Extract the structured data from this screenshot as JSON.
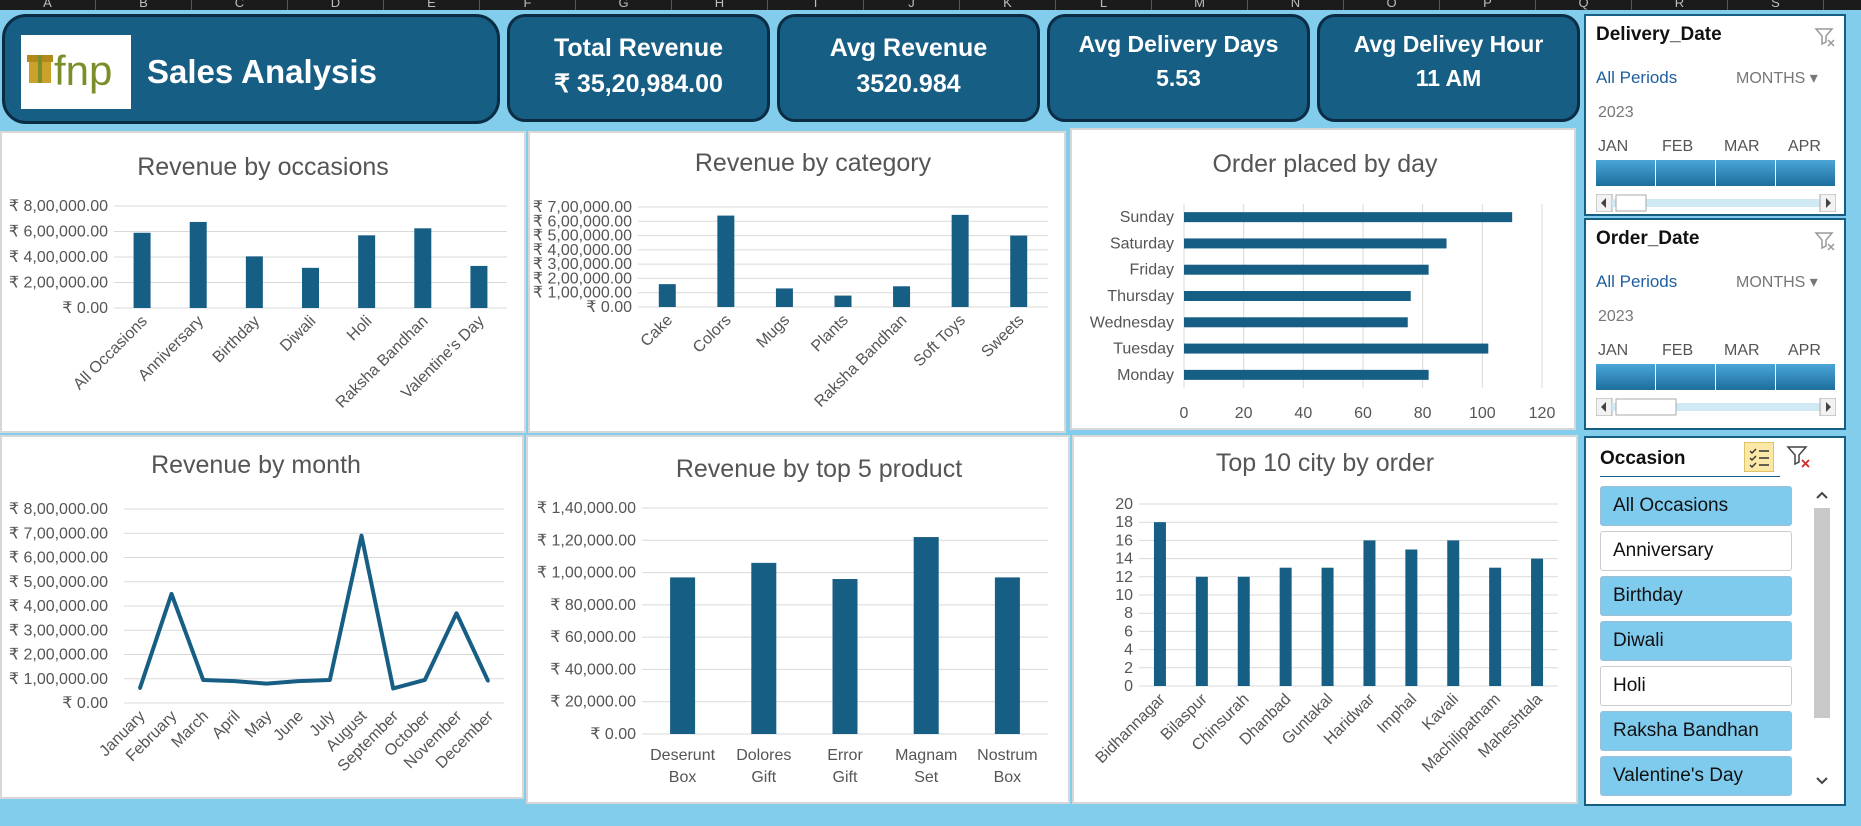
{
  "column_headers": [
    "A",
    "B",
    "C",
    "D",
    "E",
    "F",
    "G",
    "H",
    "I",
    "J",
    "K",
    "L",
    "M",
    "N",
    "O",
    "P",
    "Q",
    "R",
    "S"
  ],
  "dashboard": {
    "title": "Sales Analysis",
    "logo_text": "fnp"
  },
  "kpis": [
    {
      "title": "Total Revenue",
      "value": "₹ 35,20,984.00"
    },
    {
      "title": "Avg Revenue",
      "value": "3520.984"
    },
    {
      "title": "Avg Delivery Days",
      "value": "5.53"
    },
    {
      "title": "Avg Delivey Hour",
      "value": "11 AM"
    }
  ],
  "slicers": {
    "delivery_date": {
      "title": "Delivery_Date",
      "all_periods": "All Periods",
      "level": "MONTHS",
      "year": "2023",
      "months": [
        "JAN",
        "FEB",
        "MAR",
        "APR"
      ]
    },
    "order_date": {
      "title": "Order_Date",
      "all_periods": "All Periods",
      "level": "MONTHS",
      "year": "2023",
      "months": [
        "JAN",
        "FEB",
        "MAR",
        "APR"
      ]
    },
    "occasion": {
      "title": "Occasion",
      "items": [
        {
          "label": "All Occasions",
          "selected": true
        },
        {
          "label": "Anniversary",
          "selected": false
        },
        {
          "label": "Birthday",
          "selected": true
        },
        {
          "label": "Diwali",
          "selected": true
        },
        {
          "label": "Holi",
          "selected": false
        },
        {
          "label": "Raksha Bandhan",
          "selected": true
        },
        {
          "label": "Valentine's Day",
          "selected": true
        }
      ]
    }
  },
  "colors": {
    "bar": "#175e84",
    "header": "#175e84",
    "background": "#82cdeb"
  },
  "chart_data": [
    {
      "id": "occasions",
      "type": "bar",
      "title": "Revenue by occasions",
      "categories": [
        "All Occasions",
        "Anniversary",
        "Birthday",
        "Diwali",
        "Holi",
        "Raksha Bandhan",
        "Valentine's Day"
      ],
      "values": [
        590000,
        675000,
        405000,
        315000,
        570000,
        625000,
        330000
      ],
      "yticks": [
        "₹ 0.00",
        "₹ 2,00,000.00",
        "₹ 4,00,000.00",
        "₹ 6,00,000.00",
        "₹ 8,00,000.00"
      ],
      "ylim": [
        0,
        800000
      ]
    },
    {
      "id": "category",
      "type": "bar",
      "title": "Revenue by category",
      "categories": [
        "Cake",
        "Colors",
        "Mugs",
        "Plants",
        "Raksha Bandhan",
        "Soft Toys",
        "Sweets"
      ],
      "values": [
        160000,
        640000,
        130000,
        80000,
        145000,
        645000,
        500000
      ],
      "yticks": [
        "₹ 0.00",
        "₹ 1,00,000.00",
        "₹ 2,00,000.00",
        "₹ 3,00,000.00",
        "₹ 4,00,000.00",
        "₹ 5,00,000.00",
        "₹ 6,00,000.00",
        "₹ 7,00,000.00"
      ],
      "ylim": [
        0,
        700000
      ]
    },
    {
      "id": "day",
      "type": "bar",
      "orientation": "horizontal",
      "title": "Order placed by day",
      "categories": [
        "Sunday",
        "Saturday",
        "Friday",
        "Thursday",
        "Wednesday",
        "Tuesday",
        "Monday"
      ],
      "values": [
        110,
        88,
        82,
        76,
        75,
        102,
        82
      ],
      "xticks": [
        "0",
        "20",
        "40",
        "60",
        "80",
        "100",
        "120"
      ],
      "xlim": [
        0,
        120
      ]
    },
    {
      "id": "month",
      "type": "line",
      "title": "Revenue by month",
      "categories": [
        "January",
        "February",
        "March",
        "April",
        "May",
        "June",
        "July",
        "August",
        "September",
        "October",
        "November",
        "December"
      ],
      "values": [
        60000,
        450000,
        95000,
        90000,
        80000,
        90000,
        95000,
        690000,
        60000,
        95000,
        370000,
        90000
      ],
      "yticks": [
        "₹ 0.00",
        "₹ 1,00,000.00",
        "₹ 2,00,000.00",
        "₹ 3,00,000.00",
        "₹ 4,00,000.00",
        "₹ 5,00,000.00",
        "₹ 6,00,000.00",
        "₹ 7,00,000.00",
        "₹ 8,00,000.00"
      ],
      "ylim": [
        0,
        800000
      ]
    },
    {
      "id": "product",
      "type": "bar",
      "title": "Revenue by top 5 product",
      "categories": [
        "Deserunt Box",
        "Dolores Gift",
        "Error Gift",
        "Magnam Set",
        "Nostrum Box"
      ],
      "values": [
        97000,
        106000,
        96000,
        122000,
        97000
      ],
      "yticks": [
        "₹ 0.00",
        "₹ 20,000.00",
        "₹ 40,000.00",
        "₹ 60,000.00",
        "₹ 80,000.00",
        "₹ 1,00,000.00",
        "₹ 1,20,000.00",
        "₹ 1,40,000.00"
      ],
      "ylim": [
        0,
        140000
      ]
    },
    {
      "id": "city",
      "type": "bar",
      "title": "Top 10 city by order",
      "categories": [
        "Bidhannagar",
        "Bilaspur",
        "Chinsurah",
        "Dhanbad",
        "Guntakal",
        "Haridwar",
        "Imphal",
        "Kavali",
        "Machilipatnam",
        "Maheshtala"
      ],
      "values": [
        18,
        12,
        12,
        13,
        13,
        16,
        15,
        16,
        13,
        14
      ],
      "yticks": [
        "0",
        "2",
        "4",
        "6",
        "8",
        "10",
        "12",
        "14",
        "16",
        "18",
        "20"
      ],
      "ylim": [
        0,
        20
      ]
    }
  ]
}
